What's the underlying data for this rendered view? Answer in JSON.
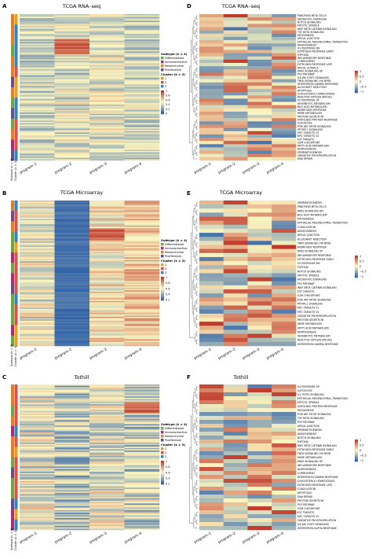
{
  "panels": [
    {
      "letter": "A",
      "title": "TCGA RNA–seq",
      "kind": "left",
      "programs": [
        "program–1",
        "program–2",
        "program–3",
        "program–4"
      ],
      "legend_subtype_title": "Subtype (k = 4)",
      "subtypes": [
        "Differentiated",
        "Immunoreactive",
        "Mesenchymal",
        "Proliferative"
      ],
      "legend_cluster_title": "Cluster (k = 3)",
      "clusters": [
        "1",
        "2",
        "3"
      ],
      "scale_ticks": [
        "1",
        "0.8",
        "0.6",
        "0.4",
        "0.2",
        "0"
      ],
      "track_labels": [
        "Subtype (k = 4)",
        "Cluster (k = 3)"
      ]
    },
    {
      "letter": "B",
      "title": "TCGA Microarray",
      "kind": "left",
      "programs": [
        "program–1",
        "program–2",
        "program–3",
        "program–4"
      ],
      "legend_subtype_title": "Subtype (k = 4)",
      "subtypes": [
        "Differentiated",
        "Immunoreactive",
        "Mesenchymal",
        "Proliferative"
      ],
      "legend_cluster_title": "Cluster (k = 3)",
      "clusters": [
        "1",
        "2",
        "3"
      ],
      "scale_ticks": [
        "1",
        "0.8",
        "0.6",
        "0.4",
        "0.2"
      ],
      "track_labels": [
        "Subtype (k = 4)",
        "Cluster (k = 3)"
      ]
    },
    {
      "letter": "C",
      "title": "Tothill",
      "kind": "left",
      "programs": [
        "program–1",
        "program–2",
        "program–3",
        "program–4"
      ],
      "legend_subtype_title": "Subtype (k = 4)",
      "subtypes": [
        "Differentiated",
        "Immunoreactive",
        "Mesenchymal",
        "Proliferative"
      ],
      "legend_cluster_title": "Cluster (k = 3)",
      "clusters": [
        "1",
        "2",
        "3"
      ],
      "scale_ticks": [
        "1",
        "0.8",
        "0.6",
        "0.4",
        "0.2"
      ],
      "track_labels": [
        "Subtype (k = 4)",
        "Cluster (k = 3)"
      ]
    },
    {
      "letter": "D",
      "title": "TCGA RNA–seq",
      "kind": "right",
      "programs": [
        "program–1",
        "program–2",
        "program–3",
        "program–4"
      ],
      "scale_ticks": [
        "1",
        "0.5",
        "0",
        "−0.5",
        "−1"
      ],
      "pathways": [
        "PANCREAS BETA CELLS",
        "HEDGEHOG SIGNALING",
        "NOTCH SIGNALING",
        "MITOTIC SPINDLE",
        "WNT BETA CATENIN SIGNALING",
        "TGF BETA SIGNALING",
        "MYOGENESIS",
        "APICAL JUNCTION",
        "EPITHELIAL MESENCHYMAL TRANSITION",
        "ANGIOGENESIS",
        "UV RESPONSE DN",
        "ESTROGEN RESPONSE EARLY",
        "HYPOXIA",
        "INFLAMMATORY RESPONSE",
        "COMPLEMENT",
        "ESTROGEN RESPONSE LATE",
        "APICAL SURFACE",
        "KRAS SIGNALING UP",
        "P53 PATHWAY",
        "IL6 JAK STAT3 SIGNALING",
        "TNFA SIGNALING VIA NFKB",
        "INTERFERON GAMMA RESPONSE",
        "ALLOGRAFT REJECTION",
        "APOPTOSIS",
        "CHOLESTEROL HOMEOSTASIS",
        "REACTIVE OXYGEN SPECIES",
        "UV RESPONSE UP",
        "XENOBIOTIC METABOLISM",
        "BILE ACID METABOLISM",
        "ANDROGEN RESPONSE",
        "HEME METABOLISM",
        "PROTEIN SECRETION",
        "UNFOLDED PROTEIN RESPONSE",
        "GLYCOLYSIS",
        "PI3K AKT MTOR SIGNALING",
        "MTORC1 SIGNALING",
        "MYC TARGETS V1",
        "MYC TARGETS V2",
        "E2F TARGETS",
        "G2M CHECKPOINT",
        "FATTY ACID METABOLISM",
        "ADIPOGENESIS",
        "SPERMATOGENESIS",
        "OXIDATIVE PHOSPHORYLATION",
        "DNA REPAIR"
      ]
    },
    {
      "letter": "E",
      "title": "TCGA Microarray",
      "kind": "right",
      "programs": [
        "program–1",
        "program–2",
        "program–3",
        "program–4"
      ],
      "scale_ticks": [
        "1",
        "0.5",
        "0",
        "−0.5",
        "−1"
      ],
      "pathways": [
        "SPERMATOGENESIS",
        "PANCREAS BETA CELLS",
        "KRAS SIGNALING DN",
        "BILE ACID METABOLISM",
        "MYOGENESIS",
        "EPITHELIAL MESENCHYMAL TRANSITION",
        "COAGULATION",
        "ANGIOGENESIS",
        "APICAL JUNCTION",
        "ALLOGRAFT REJECTION",
        "TNFA SIGNALING VIA NFKB",
        "ANDROGEN RESPONSE",
        "KRAS SIGNALING UP",
        "INFLAMMATORY RESPONSE",
        "ESTROGEN RESPONSE EARLY",
        "UV RESPONSE DN",
        "HYPOXIA",
        "NOTCH SIGNALING",
        "MITOTIC SPINDLE",
        "HEDGEHOG SIGNALING",
        "P53 PATHWAY",
        "WNT BETA CATENIN SIGNALING",
        "E2F TARGETS",
        "G2M CHECKPOINT",
        "PI3K AKT MTOR SIGNALING",
        "MTORC1 SIGNALING",
        "MYC TARGETS V1",
        "MYC TARGETS V2",
        "OXIDATIVE PHOSPHORYLATION",
        "PROTEIN SECRETION",
        "HEME METABOLISM",
        "FATTY ACID METABOLISM",
        "ADIPOGENESIS",
        "XENOBIOTIC METABOLISM",
        "REACTIVE OXYGEN SPECIES",
        "INTERFERON GAMMA RESPONSE"
      ]
    },
    {
      "letter": "F",
      "title": "Tothill",
      "kind": "right",
      "programs": [
        "program–1",
        "program–2",
        "program–3",
        "program–4"
      ],
      "scale_ticks": [
        "1",
        "0.5",
        "0",
        "−0.5",
        "−1"
      ],
      "pathways": [
        "UV RESPONSE UP",
        "GLYCOLYSIS",
        "IL2 STAT5 SIGNALING",
        "EPITHELIAL MESENCHYMAL TRANSITION",
        "MITOTIC SPINDLE",
        "UNFOLDED PROTEIN RESPONSE",
        "MYOGENESIS",
        "PI3K AKT MTOR SIGNALING",
        "TGF BETA SIGNALING",
        "P53 PATHWAY",
        "APICAL JUNCTION",
        "SPERMATOGENESIS",
        "ANGIOGENESIS",
        "NOTCH SIGNALING",
        "HYPOXIA",
        "WNT BETA CATENIN SIGNALING",
        "ESTROGEN RESPONSE EARLY",
        "TNFA SIGNALING VIA NFKB",
        "HEME METABOLISM",
        "KRAS SIGNALING UP",
        "INFLAMMATORY RESPONSE",
        "ADIPOGENESIS",
        "COMPLEMENT",
        "INTERFERON GAMMA RESPONSE",
        "CHOLESTEROL HOMEOSTASIS",
        "ESTROGEN RESPONSE LATE",
        "COAGULATION",
        "APOPTOSIS",
        "DNA REPAIR",
        "PROTEIN SECRETION",
        "P53 PATHWAY",
        "G2M CHECKPOINT",
        "E2F TARGETS",
        "MYC TARGETS V1",
        "OXIDATIVE PHOSPHORYLATION",
        "IL6 JAK STAT3 SIGNALING",
        "INTERFERON ALPHA RESPONSE"
      ]
    }
  ],
  "colors": {
    "subtypes": [
      "#6aaa3c",
      "#b12a7a",
      "#e67e22",
      "#6a4c93"
    ],
    "clusters": [
      "#f39c12",
      "#e74c3c",
      "#2e86c1"
    ],
    "heat_low": "#2c5fa8",
    "heat_mid": "#fcf6c0",
    "heat_high": "#c0392b"
  }
}
